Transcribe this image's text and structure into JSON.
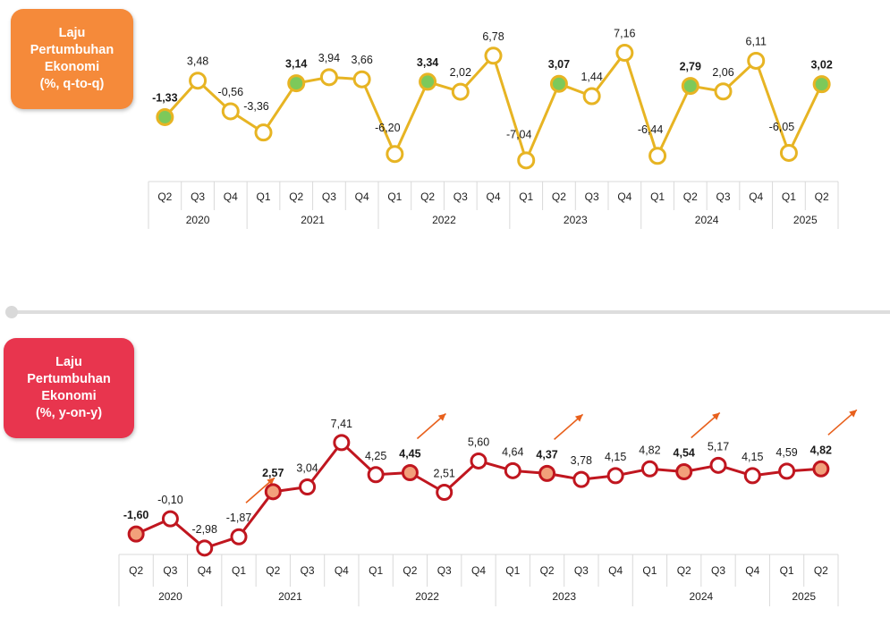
{
  "qtq": {
    "badge": {
      "line1": "Laju",
      "line2": "Pertumbuhan",
      "line3": "Ekonomi",
      "unit": "(%, q-to-q)"
    },
    "colors": {
      "line": "#e7b423",
      "highlight_fill": "#7dc95a",
      "highlight_stroke": "#e7b423",
      "marker_fill": "#ffffff"
    },
    "chart_data": {
      "type": "line",
      "title": "",
      "categories": [
        "Q2",
        "Q3",
        "Q4",
        "Q1",
        "Q2",
        "Q3",
        "Q4",
        "Q1",
        "Q2",
        "Q3",
        "Q4",
        "Q1",
        "Q2",
        "Q3",
        "Q4",
        "Q1",
        "Q2",
        "Q3",
        "Q4",
        "Q1",
        "Q2"
      ],
      "years": [
        {
          "label": "2020",
          "quarters": 3
        },
        {
          "label": "2021",
          "quarters": 4
        },
        {
          "label": "2022",
          "quarters": 4
        },
        {
          "label": "2023",
          "quarters": 4
        },
        {
          "label": "2024",
          "quarters": 4
        },
        {
          "label": "2025",
          "quarters": 2
        }
      ],
      "values": [
        -1.33,
        3.48,
        -0.56,
        -3.36,
        3.14,
        3.94,
        3.66,
        -6.2,
        3.34,
        2.02,
        6.78,
        -7.04,
        3.07,
        1.44,
        7.16,
        -6.44,
        2.79,
        2.06,
        6.11,
        -6.05,
        3.02
      ],
      "labels": [
        "-1,33",
        "3,48",
        "-0,56",
        "-3,36",
        "3,14",
        "3,94",
        "3,66",
        "-6,20",
        "3,34",
        "2,02",
        "6,78",
        "-7,04",
        "3,07",
        "1,44",
        "7,16",
        "-6,44",
        "2,79",
        "2,06",
        "6,11",
        "-6,05",
        "3,02"
      ],
      "highlighted": [
        0,
        4,
        8,
        12,
        16,
        20
      ]
    }
  },
  "yoy": {
    "badge": {
      "line1": "Laju",
      "line2": "Pertumbuhan",
      "line3": "Ekonomi",
      "unit": "(%, y-on-y)"
    },
    "colors": {
      "line": "#c0161f",
      "highlight_fill": "#f2a07b",
      "marker_fill": "#ffffff",
      "arrow": "#e8601c"
    },
    "chart_data": {
      "type": "line",
      "title": "",
      "categories": [
        "Q2",
        "Q3",
        "Q4",
        "Q1",
        "Q2",
        "Q3",
        "Q4",
        "Q1",
        "Q2",
        "Q3",
        "Q4",
        "Q1",
        "Q2",
        "Q3",
        "Q4",
        "Q1",
        "Q2",
        "Q3",
        "Q4",
        "Q1",
        "Q2"
      ],
      "years": [
        {
          "label": "2020",
          "quarters": 3
        },
        {
          "label": "2021",
          "quarters": 4
        },
        {
          "label": "2022",
          "quarters": 4
        },
        {
          "label": "2023",
          "quarters": 4
        },
        {
          "label": "2024",
          "quarters": 4
        },
        {
          "label": "2025",
          "quarters": 2
        }
      ],
      "values": [
        -1.6,
        -0.1,
        -2.98,
        -1.87,
        2.57,
        3.04,
        7.41,
        4.25,
        4.45,
        2.51,
        5.6,
        4.64,
        4.37,
        3.78,
        4.15,
        4.82,
        4.54,
        5.17,
        4.15,
        4.59,
        4.82
      ],
      "labels": [
        "-1,60",
        "-0,10",
        "-2,98",
        "-1,87",
        "2,57",
        "3,04",
        "7,41",
        "4,25",
        "4,45",
        "2,51",
        "5,60",
        "4,64",
        "4,37",
        "3,78",
        "4,15",
        "4,82",
        "4,54",
        "5,17",
        "4,15",
        "4,59",
        "4,82"
      ],
      "highlighted": [
        0,
        4,
        8,
        12,
        16,
        20
      ],
      "arrow_annotations_at": [
        3,
        8,
        12,
        16,
        20
      ]
    }
  }
}
